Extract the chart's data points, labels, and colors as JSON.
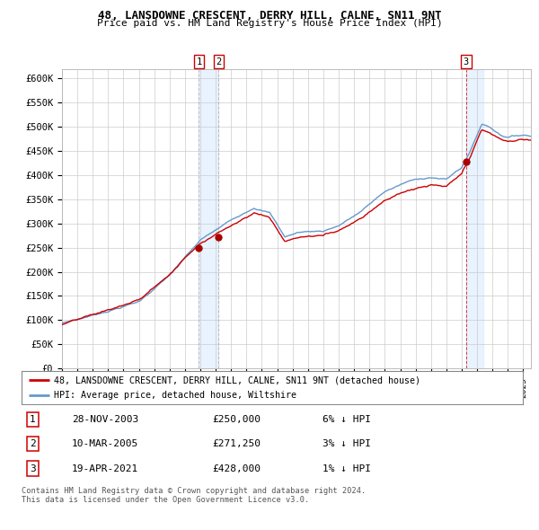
{
  "title1": "48, LANSDOWNE CRESCENT, DERRY HILL, CALNE, SN11 9NT",
  "title2": "Price paid vs. HM Land Registry's House Price Index (HPI)",
  "legend_property": "48, LANSDOWNE CRESCENT, DERRY HILL, CALNE, SN11 9NT (detached house)",
  "legend_hpi": "HPI: Average price, detached house, Wiltshire",
  "transactions": [
    {
      "num": 1,
      "date": "28-NOV-2003",
      "price": 250000,
      "hpi_rel": "6% ↓ HPI",
      "year": 2003.91
    },
    {
      "num": 2,
      "date": "10-MAR-2005",
      "price": 271250,
      "hpi_rel": "3% ↓ HPI",
      "year": 2005.19
    },
    {
      "num": 3,
      "date": "19-APR-2021",
      "price": 428000,
      "hpi_rel": "1% ↓ HPI",
      "year": 2021.29
    }
  ],
  "ylabel_ticks": [
    "£0",
    "£50K",
    "£100K",
    "£150K",
    "£200K",
    "£250K",
    "£300K",
    "£350K",
    "£400K",
    "£450K",
    "£500K",
    "£550K",
    "£600K"
  ],
  "ytick_values": [
    0,
    50000,
    100000,
    150000,
    200000,
    250000,
    300000,
    350000,
    400000,
    450000,
    500000,
    550000,
    600000
  ],
  "color_property": "#cc0000",
  "color_hpi": "#6699cc",
  "color_marker": "#aa0000",
  "bg_color": "#ffffff",
  "plot_bg": "#ffffff",
  "grid_color": "#cccccc",
  "shade_color": "#ddeeff",
  "footnote": "Contains HM Land Registry data © Crown copyright and database right 2024.\nThis data is licensed under the Open Government Licence v3.0.",
  "xmin": 1995,
  "xmax": 2025.5,
  "ymin": 0,
  "ymax": 620000
}
